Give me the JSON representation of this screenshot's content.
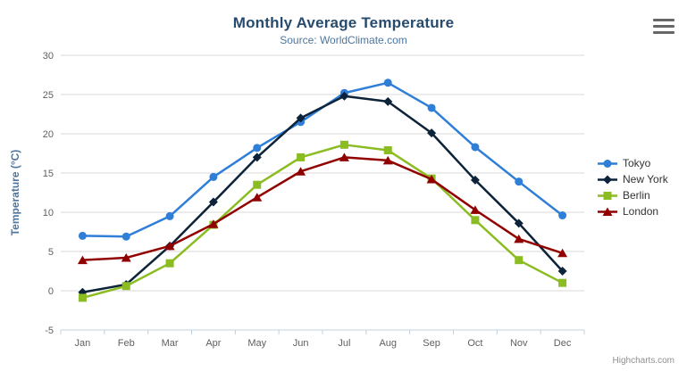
{
  "header": {
    "title": "Monthly Average Temperature",
    "subtitle": "Source: WorldClimate.com"
  },
  "credits_label": "Highcharts.com",
  "export_menu": {
    "icon": "hamburger-icon"
  },
  "chart_data": {
    "type": "line",
    "title": "Monthly Average Temperature",
    "subtitle": "Source: WorldClimate.com",
    "xlabel": "",
    "ylabel": "Temperature (°C)",
    "categories": [
      "Jan",
      "Feb",
      "Mar",
      "Apr",
      "May",
      "Jun",
      "Jul",
      "Aug",
      "Sep",
      "Oct",
      "Nov",
      "Dec"
    ],
    "ylim": [
      -5,
      30
    ],
    "yticks": [
      -5,
      0,
      5,
      10,
      15,
      20,
      25,
      30
    ],
    "grid": true,
    "legend_position": "right",
    "series": [
      {
        "name": "Tokyo",
        "color": "#2f7ed8",
        "marker": "circle",
        "values": [
          7.0,
          6.9,
          9.5,
          14.5,
          18.2,
          21.5,
          25.2,
          26.5,
          23.3,
          18.3,
          13.9,
          9.6
        ]
      },
      {
        "name": "New York",
        "color": "#0d233a",
        "marker": "diamond",
        "values": [
          -0.2,
          0.8,
          5.7,
          11.3,
          17.0,
          22.0,
          24.8,
          24.1,
          20.1,
          14.1,
          8.6,
          2.5
        ]
      },
      {
        "name": "Berlin",
        "color": "#8bbc21",
        "marker": "square",
        "values": [
          -0.9,
          0.6,
          3.5,
          8.4,
          13.5,
          17.0,
          18.6,
          17.9,
          14.3,
          9.0,
          3.9,
          1.0
        ]
      },
      {
        "name": "London",
        "color": "#910000",
        "marker": "triangle",
        "values": [
          3.9,
          4.2,
          5.7,
          8.5,
          11.9,
          15.2,
          17.0,
          16.6,
          14.2,
          10.3,
          6.6,
          4.8
        ]
      }
    ],
    "axis_colors": {
      "grid": "#d8d8d8",
      "axis_line": "#c0d0e0",
      "tick": "#c0d0e0",
      "labels": "#606060"
    }
  }
}
